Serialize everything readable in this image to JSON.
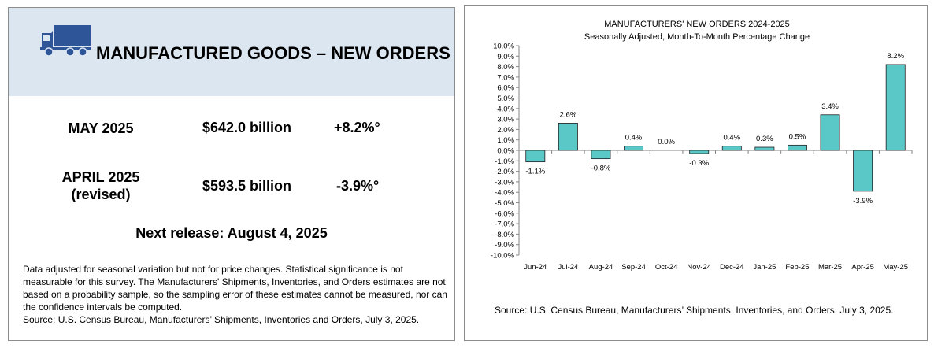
{
  "left": {
    "title": "MANUFACTURED GOODS – NEW ORDERS",
    "truck_icon": "truck-icon",
    "rows": [
      {
        "label": "MAY 2025",
        "amount": "$642.0 billion",
        "change": "+8.2%°"
      },
      {
        "label": "APRIL 2025",
        "label2": "(revised)",
        "amount": "$593.5 billion",
        "change": "-3.9%°"
      }
    ],
    "next_release": "Next release: August 4, 2025",
    "footnote": "Data adjusted for seasonal variation but not for price changes. Statistical significance is not measurable for this survey.  The Manufacturers' Shipments, Inventories, and Orders estimates are not based on a probability sample, so the sampling error of these estimates cannot be measured, nor can the confidence intervals be computed.",
    "source": "Source: U.S. Census Bureau, Manufacturers’ Shipments, Inventories and Orders, July 3, 2025.",
    "colors": {
      "header_bg": "#dce6f1",
      "truck": "#2e5597"
    }
  },
  "chart_data": {
    "type": "bar",
    "title": "MANUFACTURERS' NEW ORDERS 2024-2025",
    "subtitle": "Seasonally Adjusted,  Month-To-Month Percentage Change",
    "categories": [
      "Jun-24",
      "Jul-24",
      "Aug-24",
      "Sep-24",
      "Oct-24",
      "Nov-24",
      "Dec-24",
      "Jan-25",
      "Feb-25",
      "Mar-25",
      "Apr-25",
      "May-25"
    ],
    "values": [
      -1.1,
      2.6,
      -0.8,
      0.4,
      0.0,
      -0.3,
      0.4,
      0.3,
      0.5,
      3.4,
      -3.9,
      8.2
    ],
    "data_labels": [
      "-1.1%",
      "2.6%",
      "-0.8%",
      "0.4%",
      "0.0%",
      "-0.3%",
      "0.4%",
      "0.3%",
      "0.5%",
      "3.4%",
      "-3.9%",
      "8.2%"
    ],
    "ylim": [
      -10,
      10
    ],
    "ytick_step": 1,
    "grid": false,
    "bar_color": "#5bc8c8",
    "source": "Source: U.S. Census Bureau, Manufacturers’ Shipments, Inventories, and Orders, July 3, 2025."
  }
}
